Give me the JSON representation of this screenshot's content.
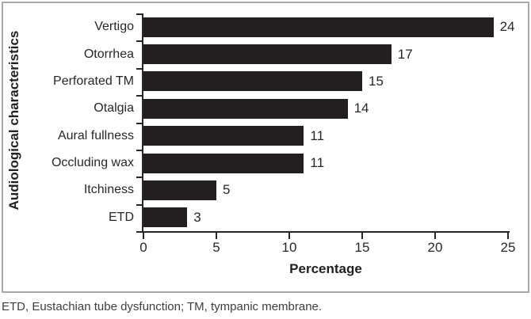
{
  "chart_data": {
    "type": "bar",
    "orientation": "horizontal",
    "title": "",
    "categories": [
      "Vertigo",
      "Otorrhea",
      "Perforated TM",
      "Otalgia",
      "Aural fullness",
      "Occluding wax",
      "Itchiness",
      "ETD"
    ],
    "values": [
      24,
      17,
      15,
      14,
      11,
      11,
      5,
      3
    ],
    "data_labels": [
      "24",
      "17",
      "15",
      "14",
      "11",
      "11",
      "5",
      "3"
    ],
    "xlabel": "Percentage",
    "ylabel": "Audiological characteristics",
    "xlim": [
      0,
      25
    ],
    "xticks": [
      "0",
      "5",
      "10",
      "15",
      "20",
      "25"
    ],
    "grid": "off",
    "legend": "none",
    "bar_color": "#231f20",
    "axis_color": "#2a2627",
    "border_color": "#a8a8a8"
  },
  "footnote": "ETD, Eustachian tube dysfunction; TM, tympanic membrane."
}
